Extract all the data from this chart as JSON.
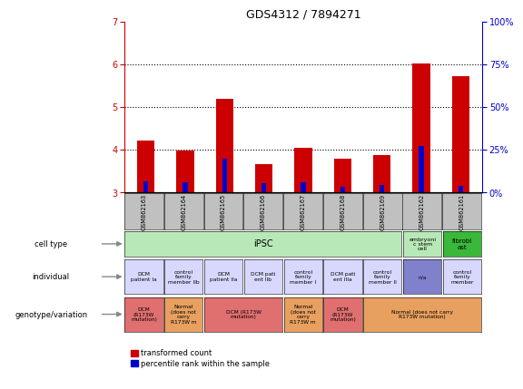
{
  "title": "GDS4312 / 7894271",
  "samples": [
    "GSM862163",
    "GSM862164",
    "GSM862165",
    "GSM862166",
    "GSM862167",
    "GSM862168",
    "GSM862169",
    "GSM862162",
    "GSM862161"
  ],
  "red_values": [
    4.22,
    3.98,
    5.18,
    3.65,
    4.05,
    3.78,
    3.88,
    6.02,
    5.72
  ],
  "blue_values": [
    3.26,
    3.24,
    3.78,
    3.22,
    3.24,
    3.12,
    3.18,
    4.08,
    3.15
  ],
  "ylim": [
    3.0,
    7.0
  ],
  "yticks": [
    3,
    4,
    5,
    6,
    7
  ],
  "y2ticks": [
    0,
    25,
    50,
    75,
    100
  ],
  "y2labels": [
    "0%",
    "25%",
    "50%",
    "75%",
    "100%"
  ],
  "dotted_lines": [
    4.0,
    5.0,
    6.0
  ],
  "bar_color_red": "#cc0000",
  "bar_color_blue": "#0000cc",
  "axis_color_red": "#cc0000",
  "axis_color_blue": "#0000cc",
  "bg_color": "#ffffff",
  "sample_label_bg": "#c0c0c0",
  "legend_red": "transformed count",
  "legend_blue": "percentile rank within the sample",
  "ind_labels": [
    "DCM\npatient Ia",
    "control\nfamily\nmember IIb",
    "DCM\npatient IIa",
    "DCM pati\nent IIb",
    "control\nfamily\nmember I",
    "DCM pati\nent IIIa",
    "control\nfamily\nmember II",
    "n/a",
    "control\nfamily\nmember"
  ],
  "ind_colors": [
    "#d8d8ff",
    "#d8d8ff",
    "#d8d8ff",
    "#d8d8ff",
    "#d8d8ff",
    "#d8d8ff",
    "#d8d8ff",
    "#8080cc",
    "#d8d8ff"
  ],
  "cell_type_colors": [
    "#b8e8b8",
    "#b8e8b8",
    "#b8e8b8",
    "#b8e8b8",
    "#b8e8b8",
    "#b8e8b8",
    "#b8e8b8",
    "#b8e8b8",
    "#3ab83a"
  ],
  "cell_type_labels": [
    "iPSC",
    "",
    "",
    "",
    "",
    "",
    "",
    "embryoni\nc stem\ncell",
    "fibrobl\nast"
  ],
  "geno_labels": [
    "DCM\n(R173W\nmutation)",
    "Normal\n(does not\ncarry\nR173W m",
    "DCM (R173W\nmutation)",
    "",
    "Normal\n(does not\ncarry\nR173W m",
    "DCM\n(R173W\nmutation)",
    "Normal (does not carry\nR173W mutation)",
    "",
    ""
  ],
  "geno_colors": [
    "#e07070",
    "#e8a060",
    "#e07070",
    "#e07070",
    "#e8a060",
    "#e07070",
    "#e8a060",
    "#e8a060",
    "#e8a060"
  ],
  "geno_spans": [
    1,
    1,
    2,
    0,
    1,
    1,
    3,
    0,
    0
  ]
}
